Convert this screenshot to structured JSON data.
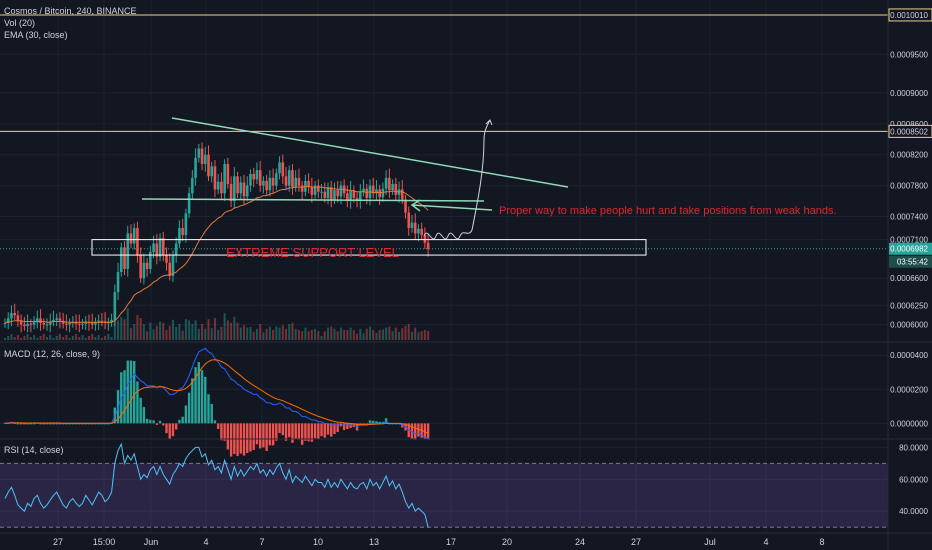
{
  "header": {
    "symbol": "Cosmos / Bitcoin, 240, BINANCE",
    "vol": "Vol (20)",
    "ema": "EMA (30, close)"
  },
  "macd_header": "MACD (12, 26, close, 9)",
  "rsi_header": "RSI (14, close)",
  "annotations": {
    "support": "EXTREME SUPPORT LEVEL",
    "note": "Proper way to make people hurt and take positions from weak hands."
  },
  "colors": {
    "background": "#131722",
    "up": "#26a69a",
    "down": "#ef5350",
    "ema": "#e57a3c",
    "trendline": "#8fd9b6",
    "level": "#e6d38a",
    "macd": "#2962ff",
    "signal": "#ff6d00",
    "rsi": "#7e57c2",
    "text": "#d1d4dc",
    "annotation": "#e0272f"
  },
  "chart_data": [
    {
      "type": "candlestick",
      "pane": "price",
      "ylim": [
        0.00058,
        0.00101
      ],
      "y_ticks": [
        "0.0010010",
        "0.0009500",
        "0.0009000",
        "0.0008600",
        "0.0008502",
        "0.0008200",
        "0.0007800",
        "0.0007400",
        "0.0007100",
        "0.0006982",
        "0.0006600",
        "0.0006250",
        "0.0006000"
      ],
      "y_tick_values": [
        0.001001,
        0.00095,
        0.0009,
        0.00086,
        0.0008502,
        0.00082,
        0.00078,
        0.00074,
        0.00071,
        0.0006982,
        0.00066,
        0.000625,
        0.0006
      ],
      "x_ticks": [
        "27",
        "15:00",
        "Jun",
        "4",
        "7",
        "10",
        "13",
        "17",
        "20",
        "24",
        "27",
        "Jul",
        "4",
        "8"
      ],
      "horizontal_levels": [
        0.001001,
        0.0008502
      ],
      "current_price_label": "0.0006982",
      "countdown_label": "03:55:42",
      "support_zone": [
        0.00069,
        0.00071
      ],
      "closes": [
        0.000602,
        0.000608,
        0.000615,
        0.000612,
        0.000605,
        0.0006,
        0.000598,
        0.000601,
        0.0006,
        0.000603,
        0.000608,
        0.000602,
        0.0006,
        0.0006,
        0.000604,
        0.000606,
        0.000608,
        0.000605,
        0.000601,
        0.0006,
        0.000602,
        0.000603,
        0.000601,
        0.0006,
        0.000601,
        0.000603,
        0.000602,
        0.0006,
        0.000603,
        0.000605,
        0.000604,
        0.000602,
        0.000603,
        0.000606,
        0.000642,
        0.000668,
        0.0007,
        0.000672,
        0.000718,
        0.000705,
        0.000725,
        0.00069,
        0.00066,
        0.00068,
        0.000672,
        0.000694,
        0.000705,
        0.000688,
        0.000712,
        0.00069,
        0.00068,
        0.000663,
        0.00069,
        0.000705,
        0.000725,
        0.000716,
        0.000744,
        0.00077,
        0.00079,
        0.000816,
        0.000828,
        0.000808,
        0.00082,
        0.000792,
        0.000805,
        0.000775,
        0.000785,
        0.00077,
        0.000808,
        0.000782,
        0.00076,
        0.000792,
        0.00077,
        0.000784,
        0.000766,
        0.00078,
        0.000795,
        0.000788,
        0.0008,
        0.00078,
        0.000786,
        0.000774,
        0.00079,
        0.00078,
        0.000796,
        0.00081,
        0.000792,
        0.00078,
        0.0008,
        0.000778,
        0.00079,
        0.00078,
        0.000772,
        0.000786,
        0.000778,
        0.000768,
        0.00078,
        0.000772,
        0.000772,
        0.000764,
        0.000778,
        0.000762,
        0.000774,
        0.000766,
        0.00078,
        0.00077,
        0.00076,
        0.000774,
        0.000764,
        0.00076,
        0.000772,
        0.000776,
        0.000764,
        0.00078,
        0.00077,
        0.000775,
        0.000765,
        0.000776,
        0.00079,
        0.000774,
        0.000782,
        0.000768,
        0.000775,
        0.000762,
        0.000745,
        0.000725,
        0.000732,
        0.000718,
        0.000724,
        0.000716,
        0.000706,
        0.000698
      ],
      "ema_30": [
        0.000603,
        0.000603,
        0.000604,
        0.000605,
        0.000605,
        0.000605,
        0.000604,
        0.000604,
        0.000604,
        0.000604,
        0.000604,
        0.000604,
        0.000604,
        0.000603,
        0.000603,
        0.000604,
        0.000604,
        0.000604,
        0.000604,
        0.000603,
        0.000603,
        0.000603,
        0.000603,
        0.000603,
        0.000603,
        0.000603,
        0.000603,
        0.000603,
        0.000603,
        0.000603,
        0.000603,
        0.000603,
        0.000603,
        0.000603,
        0.000605,
        0.000609,
        0.000615,
        0.000619,
        0.000626,
        0.000631,
        0.000638,
        0.000641,
        0.000643,
        0.000646,
        0.000648,
        0.000651,
        0.000655,
        0.000657,
        0.000661,
        0.000663,
        0.000664,
        0.000664,
        0.000666,
        0.000668,
        0.000672,
        0.000675,
        0.000679,
        0.000685,
        0.000692,
        0.0007,
        0.000708,
        0.000714,
        0.000721,
        0.000726,
        0.000731,
        0.000734,
        0.000738,
        0.00074,
        0.000745,
        0.000747,
        0.000748,
        0.000751,
        0.000752,
        0.000754,
        0.000755,
        0.000757,
        0.000759,
        0.000761,
        0.000764,
        0.000765,
        0.000767,
        0.000767,
        0.000769,
        0.00077,
        0.000772,
        0.000774,
        0.000775,
        0.000775,
        0.000777,
        0.000777,
        0.000778,
        0.000778,
        0.000778,
        0.000779,
        0.000779,
        0.000778,
        0.000778,
        0.000778,
        0.000778,
        0.000777,
        0.000777,
        0.000776,
        0.000776,
        0.000775,
        0.000775,
        0.000775,
        0.000774,
        0.000774,
        0.000773,
        0.000772,
        0.000772,
        0.000772,
        0.000771,
        0.000772,
        0.000771,
        0.000771,
        0.000771,
        0.000771,
        0.000772,
        0.000772,
        0.000773,
        0.000772,
        0.000772,
        0.000772,
        0.00077,
        0.000767,
        0.000764,
        0.000761,
        0.000758,
        0.000755,
        0.000752,
        0.000748
      ]
    },
    {
      "type": "line",
      "pane": "macd",
      "ylim": [
        -8e-06,
        4.6e-05
      ],
      "y_ticks": [
        "0.0000400",
        "0.0000200",
        "0.0000000"
      ],
      "y_tick_values": [
        4e-05,
        2e-05,
        0.0
      ],
      "macd_values": [
        2e-07,
        3e-07,
        5e-07,
        4e-07,
        3e-07,
        2e-07,
        1e-07,
        1e-07,
        2e-07,
        2e-07,
        3e-07,
        2e-07,
        1e-07,
        1e-07,
        1e-07,
        2e-07,
        2e-07,
        1e-07,
        1e-07,
        0.0,
        1e-07,
        1e-07,
        1e-07,
        0.0,
        0.0,
        1e-07,
        1e-07,
        0.0,
        1e-07,
        1e-07,
        1e-07,
        1e-07,
        1e-07,
        2e-07,
        4e-06,
        9e-06,
        1.5e-05,
        1.8e-05,
        2.3e-05,
        2.6e-05,
        2.9e-05,
        2.7e-05,
        2.5e-05,
        2.4e-05,
        2.2e-05,
        2.2e-05,
        2.2e-05,
        2.1e-05,
        2.2e-05,
        2.1e-05,
        1.9e-05,
        1.7e-05,
        1.7e-05,
        1.8e-05,
        2e-05,
        2.1e-05,
        2.4e-05,
        2.8e-05,
        3.3e-05,
        3.8e-05,
        4.2e-05,
        4.3e-05,
        4.4e-05,
        4.2e-05,
        4.1e-05,
        3.8e-05,
        3.6e-05,
        3.3e-05,
        3.2e-05,
        2.9e-05,
        2.6e-05,
        2.5e-05,
        2.3e-05,
        2.2e-05,
        2e-05,
        1.9e-05,
        1.8e-05,
        1.7e-05,
        1.7e-05,
        1.5e-05,
        1.4e-05,
        1.2e-05,
        1.2e-05,
        1.1e-05,
        1.1e-05,
        1.2e-05,
        1.1e-05,
        9e-06,
        9e-06,
        7e-06,
        7e-06,
        6e-06,
        4e-06,
        4e-06,
        3e-06,
        2e-06,
        2e-06,
        1e-06,
        1e-06,
        0.0,
        0.0,
        -1e-06,
        -1e-06,
        -1e-06,
        0.0,
        -1e-06,
        -1e-06,
        -1e-06,
        -1e-06,
        -2e-06,
        -1e-06,
        -1e-06,
        -1e-06,
        0.0,
        0.0,
        0.0,
        0.0,
        0.0,
        1e-06,
        0.0,
        0.0,
        0.0,
        0.0,
        -1e-06,
        -2e-06,
        -4e-06,
        -5e-06,
        -6e-06,
        -6e-06,
        -7e-06,
        -8e-06,
        -9e-06
      ],
      "signal_values": [
        1e-07,
        2e-07,
        2e-07,
        3e-07,
        3e-07,
        3e-07,
        2e-07,
        2e-07,
        2e-07,
        2e-07,
        2e-07,
        2e-07,
        2e-07,
        2e-07,
        2e-07,
        2e-07,
        2e-07,
        2e-07,
        1e-07,
        1e-07,
        1e-07,
        1e-07,
        1e-07,
        1e-07,
        1e-07,
        1e-07,
        1e-07,
        1e-07,
        1e-07,
        1e-07,
        1e-07,
        1e-07,
        1e-07,
        1e-07,
        9e-07,
        2.5e-06,
        5e-06,
        7.6e-06,
        1.07e-05,
        1.37e-05,
        1.68e-05,
        1.88e-05,
        2e-05,
        2.08e-05,
        2.11e-05,
        2.13e-05,
        2.14e-05,
        2.13e-05,
        2.15e-05,
        2.14e-05,
        2.09e-05,
        2.01e-05,
        1.95e-05,
        1.92e-05,
        1.93e-05,
        1.97e-05,
        2.05e-05,
        2.2e-05,
        2.42e-05,
        2.7e-05,
        3e-05,
        3.26e-05,
        3.49e-05,
        3.63e-05,
        3.72e-05,
        3.74e-05,
        3.71e-05,
        3.63e-05,
        3.54e-05,
        3.41e-05,
        3.25e-05,
        3.1e-05,
        2.94e-05,
        2.79e-05,
        2.63e-05,
        2.48e-05,
        2.35e-05,
        2.22e-05,
        2.11e-05,
        1.99e-05,
        1.87e-05,
        1.74e-05,
        1.63e-05,
        1.53e-05,
        1.44e-05,
        1.39e-05,
        1.33e-05,
        1.24e-05,
        1.17e-05,
        1.08e-05,
        1e-05,
        9.2e-06,
        8.2e-06,
        7.4e-06,
        6.5e-06,
        5.6e-06,
        4.9e-06,
        4.1e-06,
        3.5e-06,
        2.8e-06,
        2.2e-06,
        1.6e-06,
        1.1e-06,
        7e-07,
        6e-07,
        3e-07,
        1e-07,
        -1e-07,
        -3e-07,
        -6e-07,
        -7e-07,
        -8e-07,
        -8e-07,
        -6e-07,
        -5e-07,
        -4e-07,
        -3e-07,
        -3e-07,
        0.0,
        0.0,
        0.0,
        0.0,
        0.0,
        -2e-07,
        -6e-07,
        -1.3e-06,
        -2e-06,
        -2.8e-06,
        -3.4e-06,
        -4.2e-06,
        -4.9e-06,
        -5.8e-06
      ]
    },
    {
      "type": "line",
      "pane": "rsi",
      "ylim": [
        27,
        84
      ],
      "y_ticks": [
        "80.0000",
        "60.0000",
        "40.0000"
      ],
      "y_tick_values": [
        80,
        60,
        40
      ],
      "bands": [
        30,
        70
      ],
      "values": [
        48,
        52,
        55,
        50,
        44,
        42,
        40,
        45,
        43,
        48,
        50,
        45,
        42,
        44,
        47,
        50,
        52,
        48,
        44,
        42,
        46,
        48,
        45,
        43,
        45,
        50,
        47,
        44,
        48,
        52,
        50,
        46,
        48,
        52,
        70,
        78,
        82,
        70,
        75,
        72,
        76,
        68,
        60,
        63,
        61,
        66,
        68,
        63,
        68,
        63,
        60,
        57,
        63,
        66,
        70,
        68,
        73,
        76,
        78,
        80,
        80,
        74,
        76,
        69,
        72,
        66,
        68,
        64,
        72,
        66,
        60,
        68,
        62,
        66,
        62,
        65,
        68,
        66,
        70,
        64,
        66,
        62,
        66,
        63,
        67,
        70,
        64,
        60,
        66,
        58,
        62,
        60,
        58,
        62,
        59,
        56,
        60,
        58,
        58,
        55,
        60,
        55,
        58,
        55,
        60,
        57,
        54,
        58,
        55,
        54,
        57,
        58,
        54,
        60,
        56,
        58,
        54,
        58,
        62,
        56,
        59,
        54,
        57,
        52,
        46,
        42,
        45,
        40,
        42,
        40,
        38,
        30
      ]
    }
  ]
}
